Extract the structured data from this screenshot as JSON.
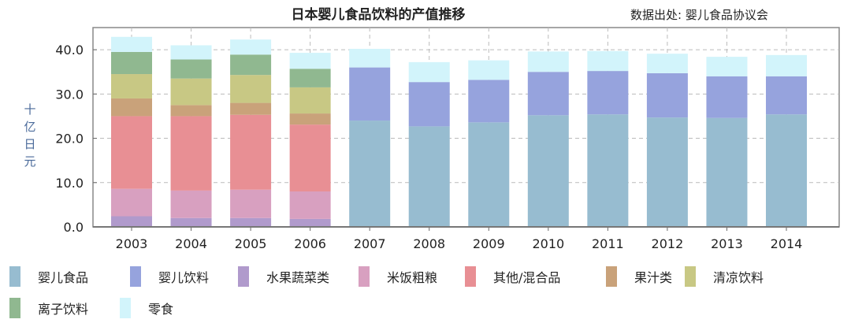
{
  "chart_data": {
    "type": "bar",
    "stacked": true,
    "title": "日本婴儿食品饮料的产值推移",
    "source": "数据出处: 婴儿食品协议会",
    "ylabel": "十亿日元",
    "xlabel": "",
    "ylim": [
      0,
      45
    ],
    "yticks": [
      "0.0",
      "10.0",
      "20.0",
      "30.0",
      "40.0"
    ],
    "grid": true,
    "legend_position": "bottom",
    "categories": [
      "2003",
      "2004",
      "2005",
      "2006",
      "2007",
      "2008",
      "2009",
      "2010",
      "2011",
      "2012",
      "2013",
      "2014"
    ],
    "series": [
      {
        "name": "婴儿食品",
        "color": "#97bcd0",
        "values": [
          0,
          0,
          0,
          0,
          24.0,
          22.7,
          23.6,
          25.2,
          25.4,
          24.7,
          24.6,
          25.4
        ]
      },
      {
        "name": "婴儿饮料",
        "color": "#96a3dd",
        "values": [
          0,
          0,
          0,
          0,
          12.0,
          10.0,
          9.6,
          9.8,
          9.8,
          10.0,
          9.4,
          8.6
        ]
      },
      {
        "name": "水果蔬菜类",
        "color": "#b09acc",
        "values": [
          2.4,
          2.0,
          2.0,
          1.8,
          0,
          0,
          0,
          0,
          0,
          0,
          0,
          0
        ]
      },
      {
        "name": "米饭粗粮",
        "color": "#d8a0c0",
        "values": [
          6.2,
          6.2,
          6.4,
          6.2,
          0,
          0,
          0,
          0,
          0,
          0,
          0,
          0
        ]
      },
      {
        "name": "其他/混合品",
        "color": "#e88f94",
        "values": [
          16.4,
          16.8,
          16.9,
          15.1,
          0,
          0,
          0,
          0,
          0,
          0,
          0,
          0
        ]
      },
      {
        "name": "果汁类",
        "color": "#c9a27a",
        "values": [
          4.0,
          2.5,
          2.7,
          2.5,
          0,
          0,
          0,
          0,
          0,
          0,
          0,
          0
        ]
      },
      {
        "name": "清凉饮料",
        "color": "#c8c884",
        "values": [
          5.5,
          6.0,
          6.3,
          5.9,
          0,
          0,
          0,
          0,
          0,
          0,
          0,
          0
        ]
      },
      {
        "name": "离子饮料",
        "color": "#90b890",
        "values": [
          5.0,
          4.3,
          4.6,
          4.2,
          0,
          0,
          0,
          0,
          0,
          0,
          0,
          0
        ]
      },
      {
        "name": "零食",
        "color": "#d2f4fb",
        "values": [
          3.4,
          3.2,
          3.4,
          3.6,
          4.2,
          4.5,
          4.4,
          4.6,
          4.5,
          4.4,
          4.4,
          4.8
        ]
      }
    ]
  }
}
